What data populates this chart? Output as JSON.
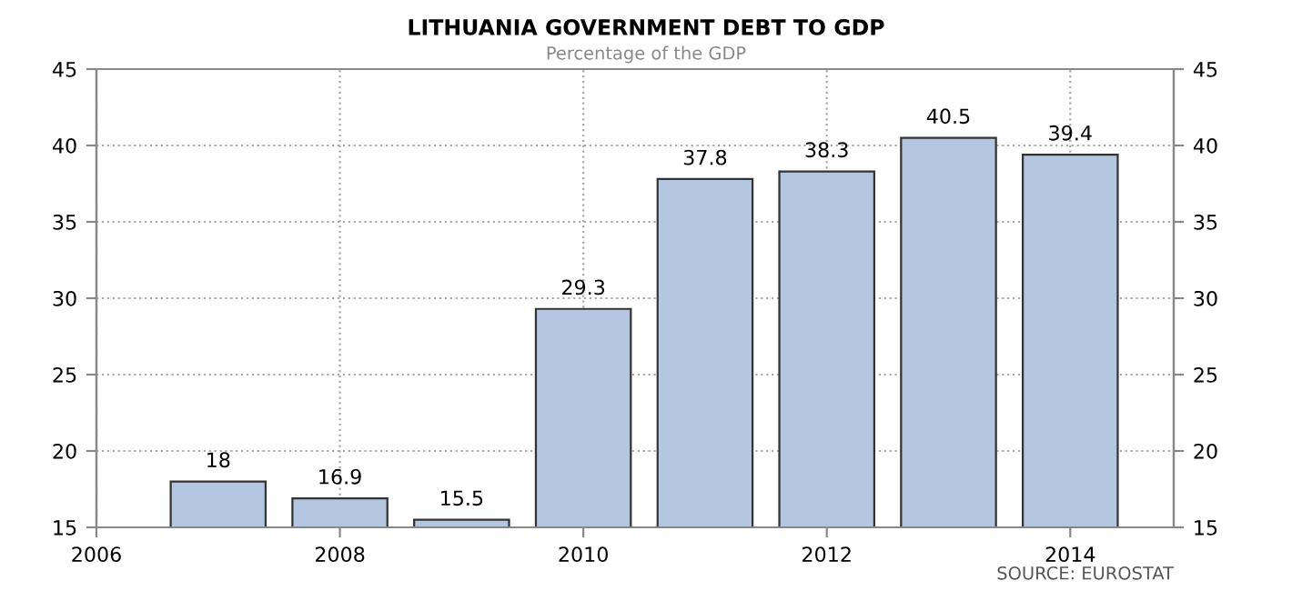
{
  "chart_data": {
    "type": "bar",
    "title": "LITHUANIA GOVERNMENT DEBT TO GDP",
    "subtitle": "Percentage of the GDP",
    "x": [
      2007,
      2008,
      2009,
      2010,
      2011,
      2012,
      2013,
      2014
    ],
    "values": [
      18,
      16.9,
      15.5,
      29.3,
      37.8,
      38.3,
      40.5,
      39.4
    ],
    "color": "#b4c6e0",
    "data_labels": true,
    "xlim": [
      2006,
      2014.85
    ],
    "xticks": [
      2006,
      2008,
      2010,
      2012,
      2014
    ],
    "ylim": [
      15,
      45
    ],
    "yticks": [
      15,
      20,
      25,
      30,
      35,
      40,
      45
    ],
    "y2lim": [
      15,
      45
    ],
    "y2ticks": [
      15,
      20,
      25,
      30,
      35,
      40,
      45
    ],
    "grid": true,
    "annotations": [
      "SOURCE: EUROSTAT"
    ]
  }
}
